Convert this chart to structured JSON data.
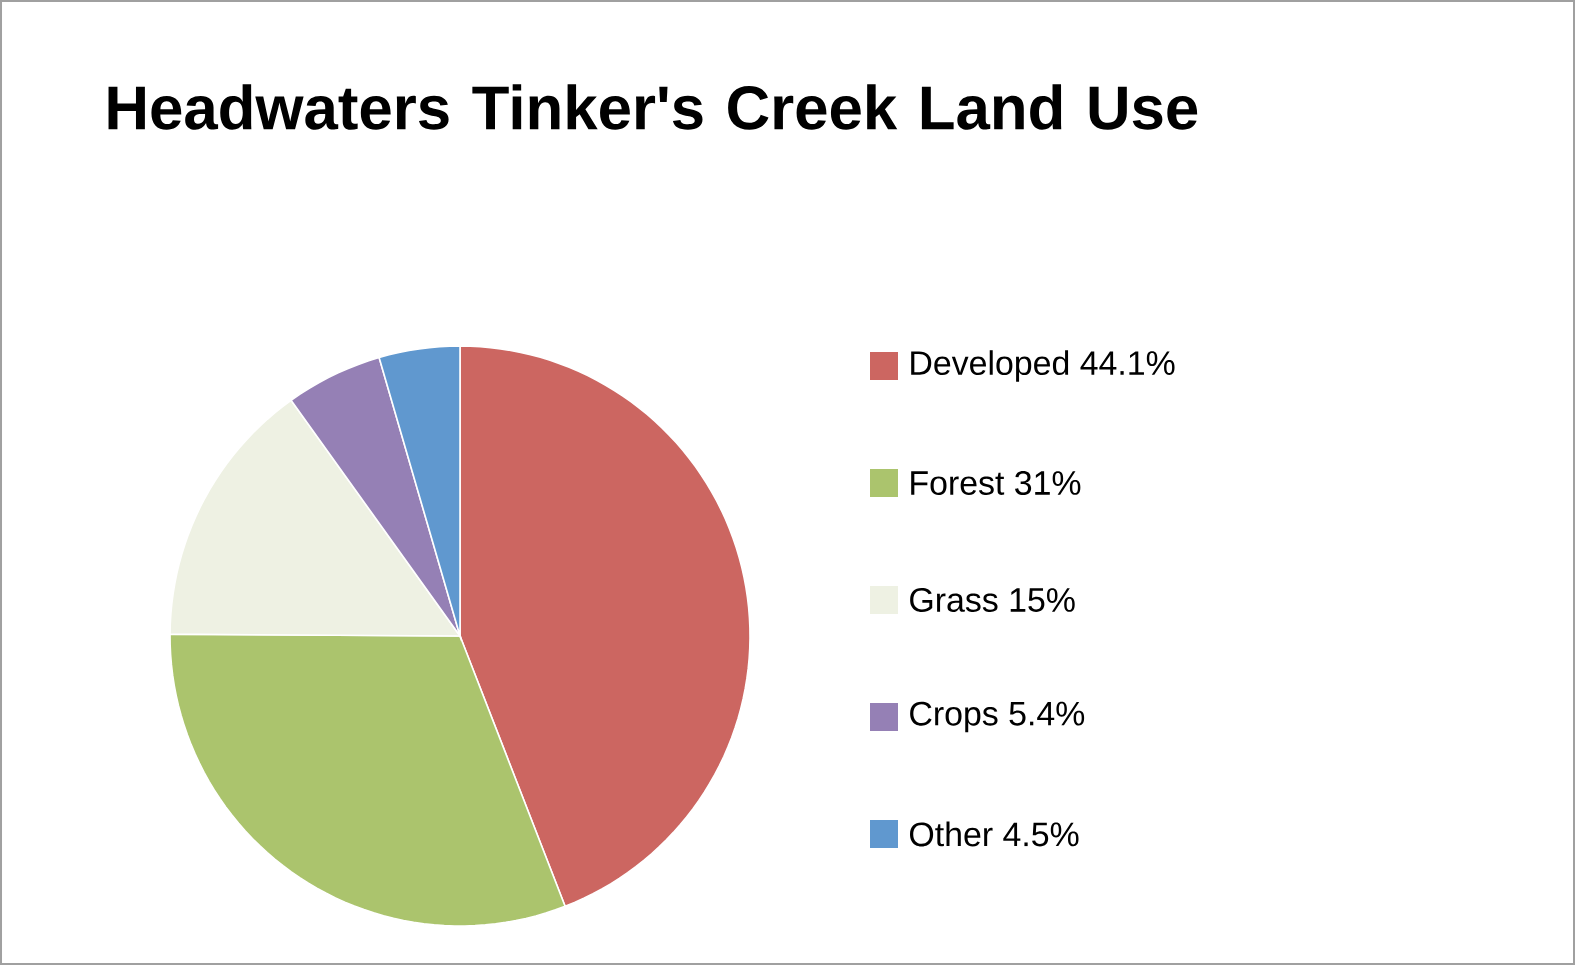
{
  "chart_data": {
    "type": "pie",
    "title": "Headwaters Tinker's Creek Land Use",
    "categories": [
      "Developed 44.1%",
      "Forest 31%",
      "Grass 15%",
      "Crops 5.4%",
      "Other 4.5%"
    ],
    "values": [
      44.1,
      31,
      15,
      5.4,
      4.5
    ],
    "colors": [
      "#cc6661",
      "#abc46d",
      "#eef1e3",
      "#9580b5",
      "#6098cf"
    ],
    "legend": "right"
  }
}
